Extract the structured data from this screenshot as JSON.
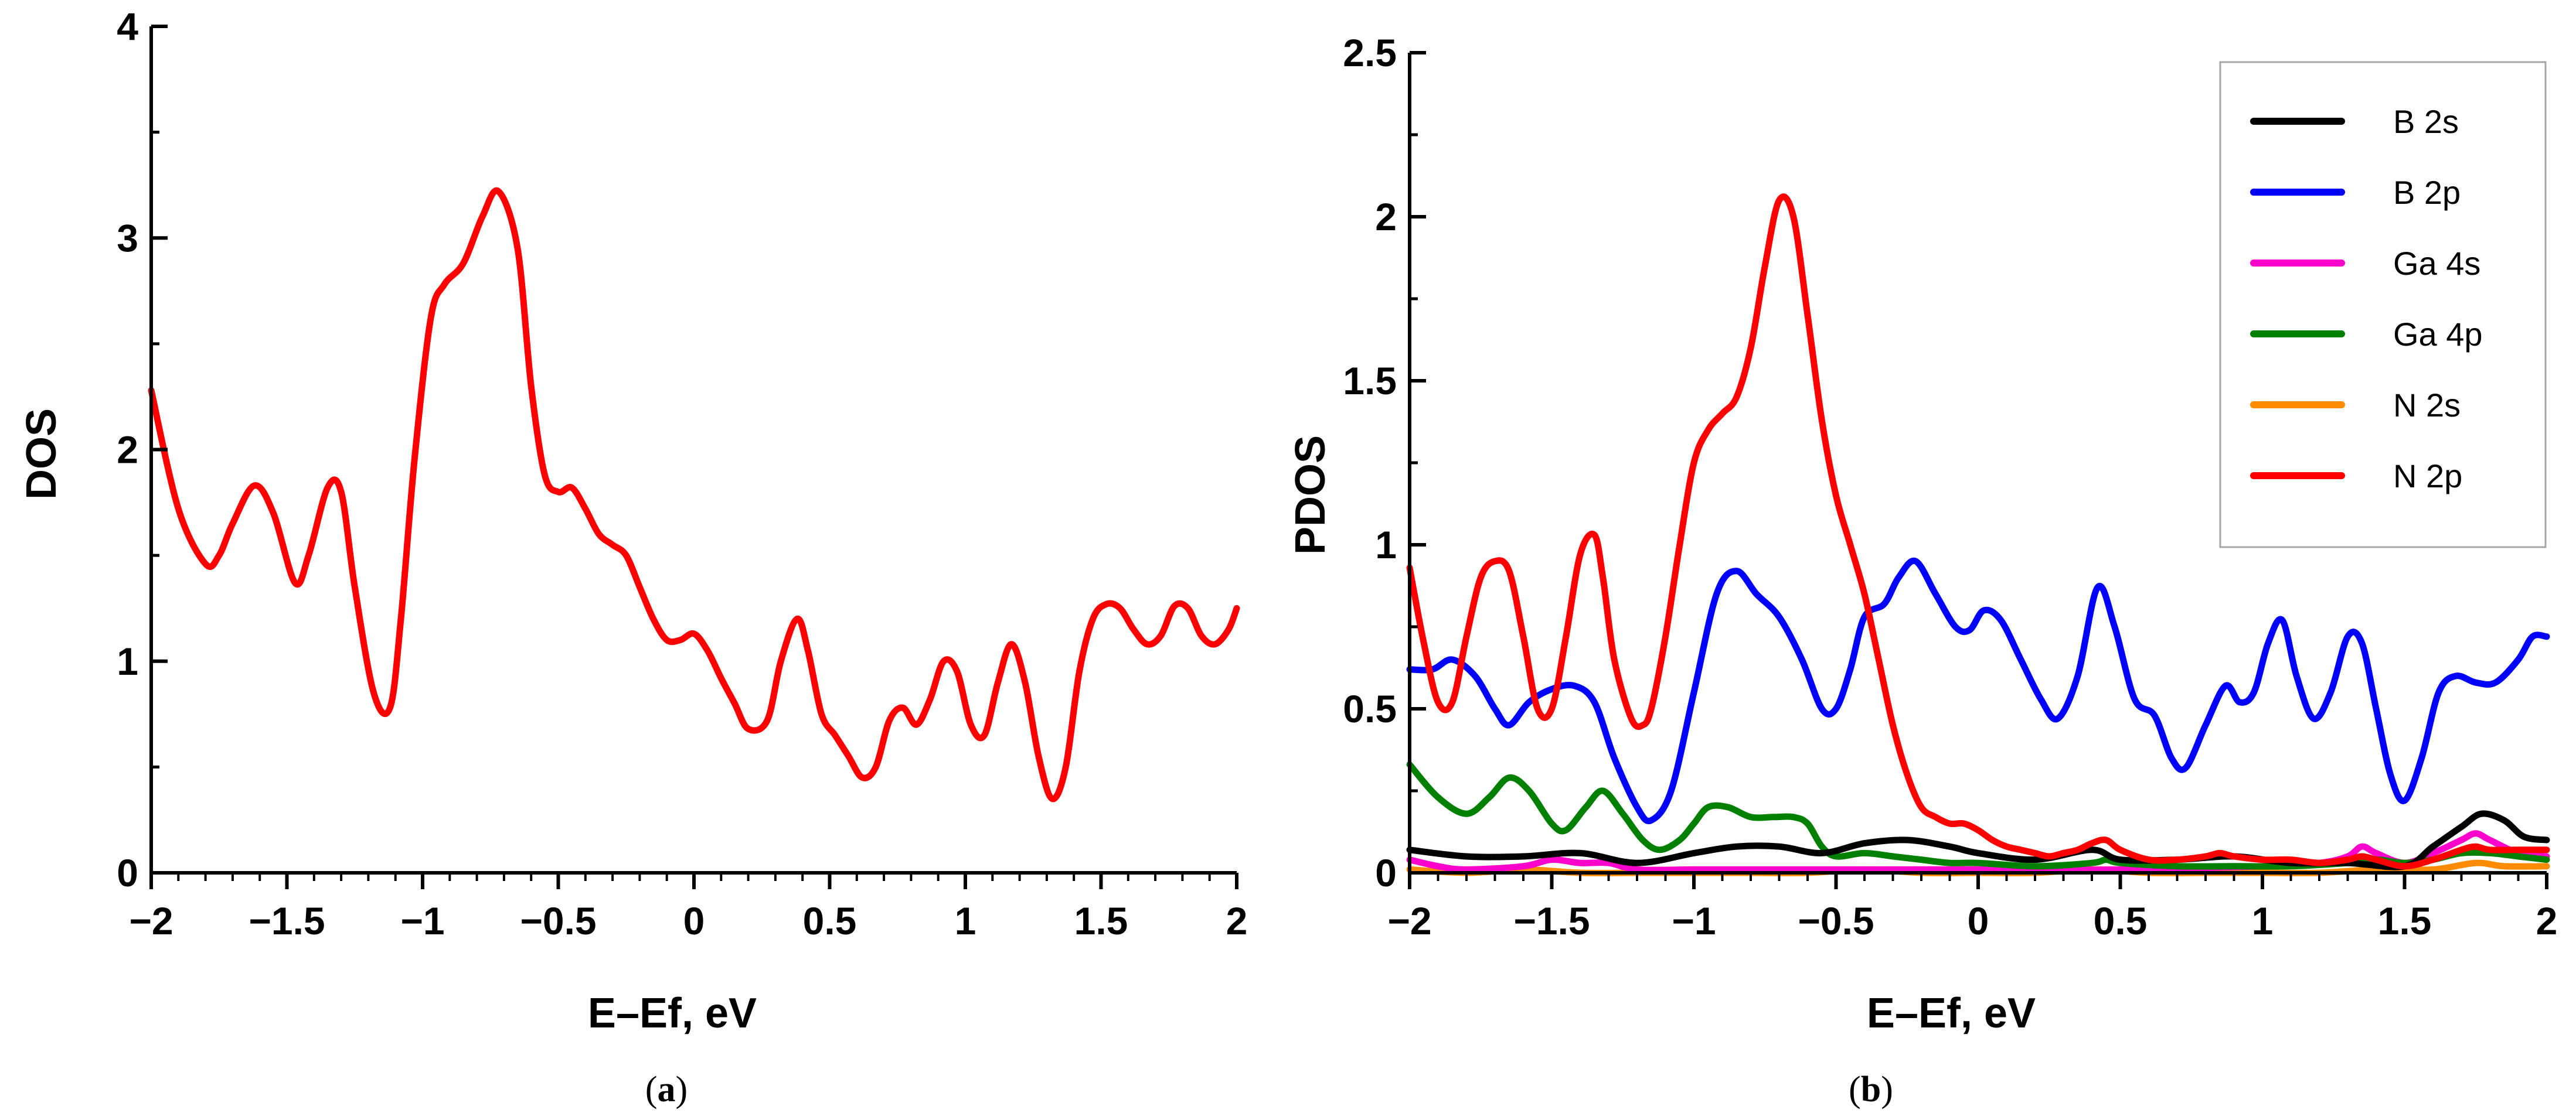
{
  "chart_data": [
    {
      "type": "line",
      "panel_label": "a",
      "caption": {
        "open": "(",
        "letter": "a",
        "close": ")"
      },
      "title": "",
      "xlabel": "E–Ef, eV",
      "ylabel": "DOS",
      "xlim": [
        -2,
        2
      ],
      "ylim": [
        0,
        4
      ],
      "x_ticks": [
        -2,
        -1.5,
        -1,
        -0.5,
        0,
        0.5,
        1,
        1.5,
        2
      ],
      "x_tick_labels": [
        "−2",
        "−1.5",
        "−1",
        "−0.5",
        "0",
        "0.5",
        "1",
        "1.5",
        "2"
      ],
      "y_ticks": [
        0,
        1,
        2,
        3,
        4
      ],
      "y_tick_labels": [
        "0",
        "1",
        "2",
        "3",
        "4"
      ],
      "grid": false,
      "legend": null,
      "series": [
        {
          "name": "DOS",
          "color": "#ff0000",
          "x": [
            -2,
            -1.9,
            -1.8,
            -1.75,
            -1.7,
            -1.62,
            -1.55,
            -1.47,
            -1.42,
            -1.35,
            -1.3,
            -1.25,
            -1.18,
            -1.12,
            -1.08,
            -1.03,
            -0.97,
            -0.92,
            -0.85,
            -0.78,
            -0.72,
            -0.65,
            -0.6,
            -0.55,
            -0.5,
            -0.45,
            -0.4,
            -0.35,
            -0.3,
            -0.25,
            -0.2,
            -0.15,
            -0.1,
            -0.05,
            0,
            0.05,
            0.1,
            0.15,
            0.2,
            0.27,
            0.32,
            0.38,
            0.42,
            0.47,
            0.52,
            0.57,
            0.62,
            0.67,
            0.72,
            0.77,
            0.82,
            0.87,
            0.92,
            0.97,
            1.02,
            1.07,
            1.12,
            1.17,
            1.22,
            1.27,
            1.32,
            1.37,
            1.42,
            1.47,
            1.52,
            1.57,
            1.62,
            1.67,
            1.72,
            1.77,
            1.82,
            1.87,
            1.92,
            1.97,
            2
          ],
          "y": [
            2.28,
            1.72,
            1.46,
            1.5,
            1.65,
            1.83,
            1.7,
            1.37,
            1.5,
            1.82,
            1.8,
            1.35,
            0.85,
            0.78,
            1.2,
            1.95,
            2.62,
            2.78,
            2.88,
            3.1,
            3.22,
            2.95,
            2.3,
            1.88,
            1.8,
            1.82,
            1.72,
            1.6,
            1.55,
            1.5,
            1.35,
            1.2,
            1.1,
            1.1,
            1.13,
            1.05,
            0.92,
            0.8,
            0.68,
            0.72,
            1.0,
            1.2,
            1.05,
            0.75,
            0.65,
            0.55,
            0.45,
            0.5,
            0.72,
            0.78,
            0.7,
            0.82,
            1.0,
            0.95,
            0.7,
            0.65,
            0.9,
            1.08,
            0.9,
            0.55,
            0.35,
            0.5,
            0.95,
            1.2,
            1.27,
            1.25,
            1.15,
            1.08,
            1.12,
            1.26,
            1.25,
            1.12,
            1.08,
            1.15,
            1.25
          ]
        }
      ]
    },
    {
      "type": "line",
      "panel_label": "b",
      "caption": {
        "open": "(",
        "letter": "b",
        "close": ")"
      },
      "title": "",
      "xlabel": "E–Ef, eV",
      "ylabel": "PDOS",
      "xlim": [
        -2,
        2
      ],
      "ylim": [
        0,
        2.5
      ],
      "x_ticks": [
        -2,
        -1.5,
        -1,
        -0.5,
        0,
        0.5,
        1,
        1.5,
        2
      ],
      "x_tick_labels": [
        "−2",
        "−1.5",
        "−1",
        "−0.5",
        "0",
        "0.5",
        "1",
        "1.5",
        "2"
      ],
      "y_ticks": [
        0,
        0.5,
        1,
        1.5,
        2,
        2.5
      ],
      "y_tick_labels": [
        "0",
        "0.5",
        "1",
        "1.5",
        "2",
        "2.5"
      ],
      "grid": false,
      "legend": "top-right",
      "series": [
        {
          "name": "B 2s",
          "color": "#000000",
          "x": [
            -2,
            -1.8,
            -1.6,
            -1.4,
            -1.2,
            -1.0,
            -0.85,
            -0.7,
            -0.55,
            -0.4,
            -0.25,
            -0.1,
            0,
            0.2,
            0.4,
            0.5,
            0.7,
            0.9,
            1.1,
            1.3,
            1.5,
            1.6,
            1.7,
            1.77,
            1.85,
            1.92,
            2
          ],
          "y": [
            0.07,
            0.05,
            0.05,
            0.06,
            0.03,
            0.06,
            0.08,
            0.08,
            0.06,
            0.09,
            0.1,
            0.08,
            0.06,
            0.04,
            0.07,
            0.04,
            0.04,
            0.05,
            0.03,
            0.03,
            0.02,
            0.08,
            0.14,
            0.18,
            0.16,
            0.11,
            0.1
          ]
        },
        {
          "name": "B 2p",
          "color": "#0000ff",
          "x": [
            -2,
            -1.92,
            -1.85,
            -1.77,
            -1.7,
            -1.65,
            -1.58,
            -1.5,
            -1.42,
            -1.35,
            -1.28,
            -1.2,
            -1.15,
            -1.08,
            -1.0,
            -0.92,
            -0.85,
            -0.78,
            -0.7,
            -0.62,
            -0.55,
            -0.5,
            -0.45,
            -0.4,
            -0.33,
            -0.28,
            -0.22,
            -0.15,
            -0.08,
            -0.03,
            0.02,
            0.08,
            0.15,
            0.22,
            0.28,
            0.35,
            0.42,
            0.48,
            0.55,
            0.62,
            0.68,
            0.73,
            0.8,
            0.87,
            0.92,
            0.97,
            1.02,
            1.07,
            1.12,
            1.18,
            1.24,
            1.3,
            1.35,
            1.4,
            1.45,
            1.5,
            1.56,
            1.62,
            1.68,
            1.75,
            1.82,
            1.9,
            1.95,
            2
          ],
          "y": [
            0.62,
            0.62,
            0.65,
            0.6,
            0.5,
            0.45,
            0.52,
            0.56,
            0.57,
            0.52,
            0.35,
            0.2,
            0.16,
            0.25,
            0.55,
            0.85,
            0.92,
            0.85,
            0.78,
            0.65,
            0.5,
            0.5,
            0.62,
            0.78,
            0.82,
            0.9,
            0.95,
            0.85,
            0.75,
            0.74,
            0.8,
            0.77,
            0.65,
            0.53,
            0.47,
            0.6,
            0.87,
            0.75,
            0.53,
            0.48,
            0.35,
            0.32,
            0.45,
            0.57,
            0.52,
            0.55,
            0.7,
            0.77,
            0.6,
            0.47,
            0.55,
            0.72,
            0.7,
            0.5,
            0.3,
            0.22,
            0.35,
            0.55,
            0.6,
            0.58,
            0.58,
            0.65,
            0.72,
            0.72
          ]
        },
        {
          "name": "Ga 4s",
          "color": "#ff00cc",
          "x": [
            -2,
            -1.9,
            -1.8,
            -1.6,
            -1.5,
            -1.4,
            -1.3,
            -1.2,
            -1.0,
            -0.8,
            -0.5,
            0,
            0.5,
            1.0,
            1.2,
            1.3,
            1.35,
            1.4,
            1.5,
            1.6,
            1.7,
            1.75,
            1.8,
            1.9,
            2
          ],
          "y": [
            0.04,
            0.02,
            0.01,
            0.02,
            0.04,
            0.03,
            0.03,
            0.01,
            0.01,
            0.01,
            0.01,
            0.01,
            0.01,
            0.02,
            0.03,
            0.05,
            0.08,
            0.06,
            0.03,
            0.06,
            0.1,
            0.12,
            0.1,
            0.06,
            0.05
          ]
        },
        {
          "name": "Ga 4p",
          "color": "#008000",
          "x": [
            -2,
            -1.9,
            -1.8,
            -1.72,
            -1.65,
            -1.58,
            -1.5,
            -1.45,
            -1.38,
            -1.32,
            -1.25,
            -1.18,
            -1.12,
            -1.05,
            -1.0,
            -0.95,
            -0.88,
            -0.8,
            -0.72,
            -0.65,
            -0.6,
            -0.55,
            -0.5,
            -0.4,
            -0.3,
            -0.2,
            -0.1,
            0,
            0.2,
            0.4,
            0.45,
            0.5,
            0.7,
            0.9,
            1.1,
            1.3,
            1.4,
            1.5,
            1.6,
            1.7,
            1.8,
            1.9,
            2
          ],
          "y": [
            0.33,
            0.23,
            0.18,
            0.23,
            0.29,
            0.25,
            0.15,
            0.13,
            0.2,
            0.25,
            0.18,
            0.1,
            0.07,
            0.1,
            0.15,
            0.2,
            0.2,
            0.17,
            0.17,
            0.17,
            0.15,
            0.08,
            0.05,
            0.06,
            0.05,
            0.04,
            0.03,
            0.03,
            0.02,
            0.03,
            0.04,
            0.03,
            0.02,
            0.02,
            0.02,
            0.03,
            0.04,
            0.03,
            0.04,
            0.06,
            0.06,
            0.05,
            0.04
          ]
        },
        {
          "name": "N 2s",
          "color": "#ff8c00",
          "x": [
            -2,
            -1.8,
            -1.6,
            -1.4,
            -1.2,
            -1.0,
            -0.8,
            -0.6,
            -0.4,
            -0.2,
            0,
            0.2,
            0.4,
            0.6,
            0.8,
            1.0,
            1.2,
            1.4,
            1.6,
            1.75,
            1.85,
            2
          ],
          "y": [
            0.01,
            0.0,
            0.01,
            0.0,
            0.0,
            0.0,
            0.0,
            0.0,
            0.01,
            0.0,
            0.0,
            0.0,
            0.01,
            0.0,
            0.0,
            0.0,
            0.0,
            0.01,
            0.01,
            0.03,
            0.02,
            0.02
          ]
        },
        {
          "name": "N 2p",
          "color": "#ff0000",
          "x": [
            -2,
            -1.95,
            -1.9,
            -1.85,
            -1.8,
            -1.75,
            -1.7,
            -1.65,
            -1.6,
            -1.55,
            -1.5,
            -1.45,
            -1.4,
            -1.35,
            -1.32,
            -1.28,
            -1.22,
            -1.18,
            -1.15,
            -1.1,
            -1.05,
            -1.0,
            -0.95,
            -0.9,
            -0.85,
            -0.8,
            -0.75,
            -0.7,
            -0.65,
            -0.6,
            -0.55,
            -0.5,
            -0.45,
            -0.4,
            -0.35,
            -0.3,
            -0.25,
            -0.2,
            -0.15,
            -0.1,
            -0.05,
            0,
            0.05,
            0.1,
            0.15,
            0.2,
            0.25,
            0.3,
            0.35,
            0.4,
            0.45,
            0.5,
            0.6,
            0.7,
            0.8,
            0.85,
            0.9,
            1.0,
            1.1,
            1.2,
            1.3,
            1.35,
            1.4,
            1.5,
            1.6,
            1.7,
            1.75,
            1.8,
            1.9,
            2
          ],
          "y": [
            0.93,
            0.7,
            0.52,
            0.52,
            0.72,
            0.9,
            0.95,
            0.92,
            0.72,
            0.5,
            0.5,
            0.72,
            0.97,
            1.03,
            0.9,
            0.65,
            0.47,
            0.45,
            0.5,
            0.72,
            1.0,
            1.25,
            1.35,
            1.4,
            1.45,
            1.6,
            1.85,
            2.05,
            2.0,
            1.7,
            1.38,
            1.15,
            1.0,
            0.85,
            0.65,
            0.45,
            0.3,
            0.2,
            0.17,
            0.15,
            0.15,
            0.13,
            0.1,
            0.08,
            0.07,
            0.06,
            0.05,
            0.06,
            0.07,
            0.09,
            0.1,
            0.07,
            0.04,
            0.04,
            0.05,
            0.06,
            0.05,
            0.04,
            0.04,
            0.03,
            0.04,
            0.05,
            0.04,
            0.02,
            0.04,
            0.07,
            0.08,
            0.07,
            0.07,
            0.07
          ]
        }
      ]
    }
  ]
}
